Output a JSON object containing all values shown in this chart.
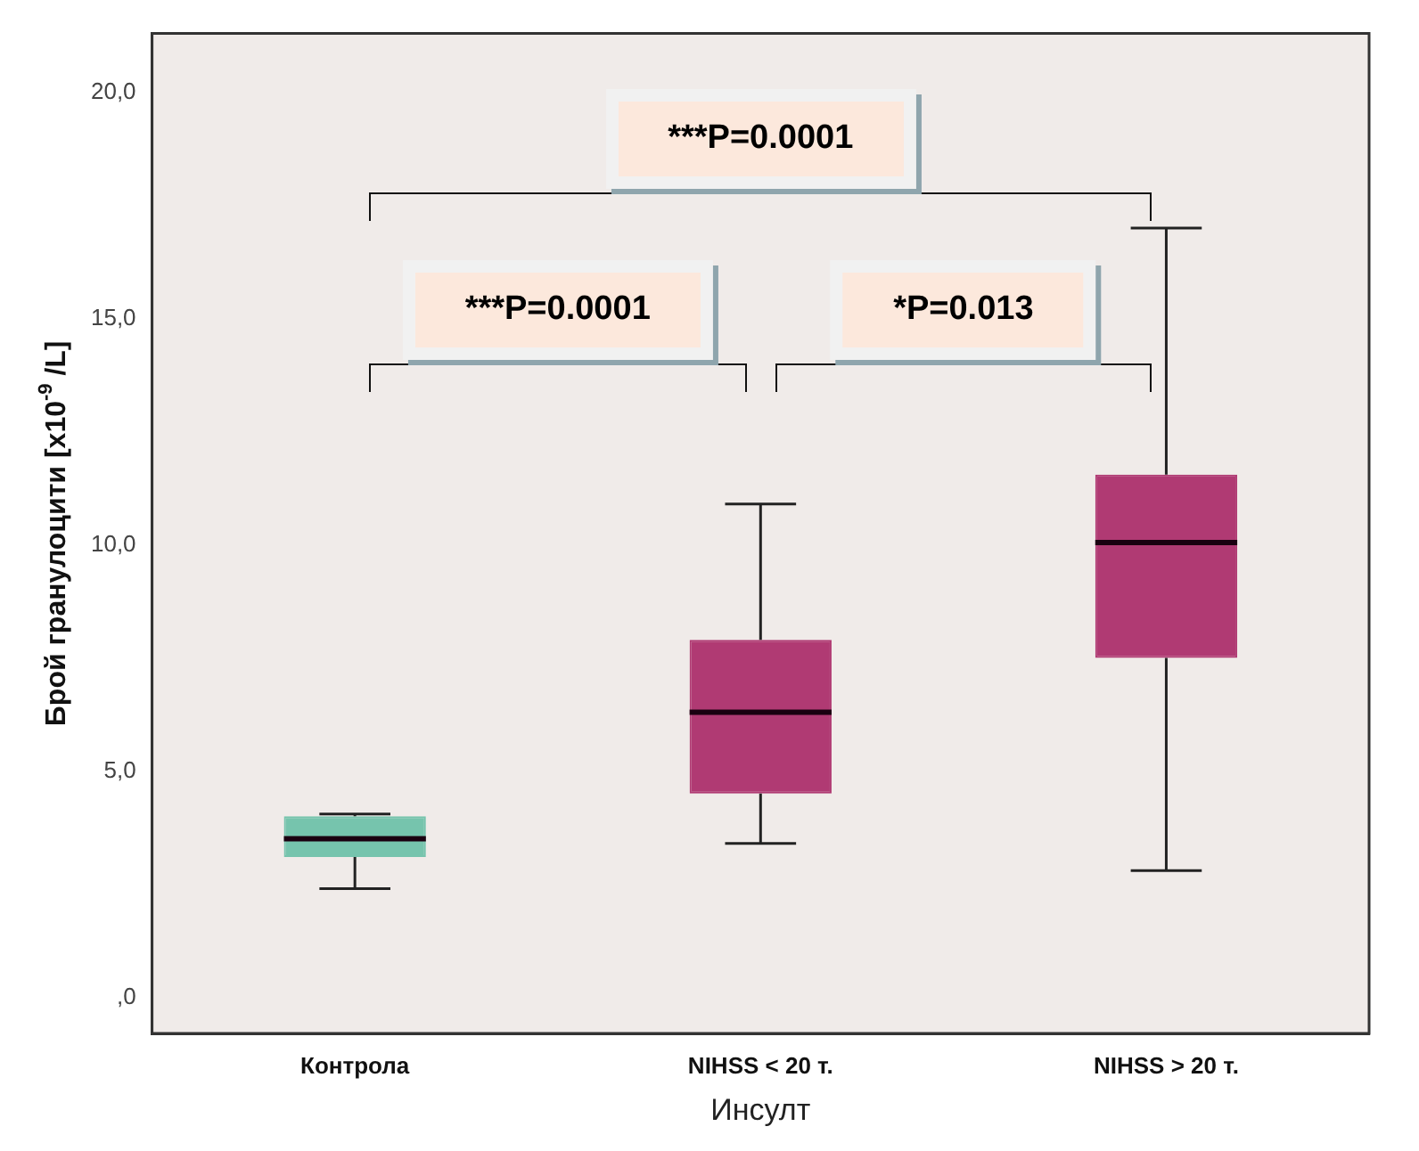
{
  "chart_data": {
    "type": "box",
    "xlabel": "Инсулт",
    "ylabel": "Брой гранулоцити [x10$^{-9}$ /L]",
    "categories": [
      "Контрола",
      "NIHSS < 20 т.",
      "NIHSS > 20 т."
    ],
    "colors": [
      "#76c4ad",
      "#b03a73",
      "#b03a73"
    ],
    "boxes": [
      {
        "low": 2.4,
        "q1": 3.1,
        "median": 3.5,
        "q3": 4.0,
        "high": 4.05
      },
      {
        "low": 3.4,
        "q1": 4.5,
        "median": 6.3,
        "q3": 7.9,
        "high": 10.9
      },
      {
        "low": 2.8,
        "q1": 7.5,
        "median": 10.05,
        "q3": 11.55,
        "high": 17.0
      }
    ],
    "ylim": [
      -0.8,
      21.3
    ],
    "yticks": [
      {
        "value": 0,
        "label": ",0"
      },
      {
        "value": 5,
        "label": "5,0"
      },
      {
        "value": 10,
        "label": "10,0"
      },
      {
        "value": 15,
        "label": "15,0"
      },
      {
        "value": 20,
        "label": "20,0"
      }
    ],
    "grid": false,
    "legend": false,
    "annotations": [
      "***P=0.0001",
      "***P=0.0001",
      "*P=0.013"
    ]
  }
}
